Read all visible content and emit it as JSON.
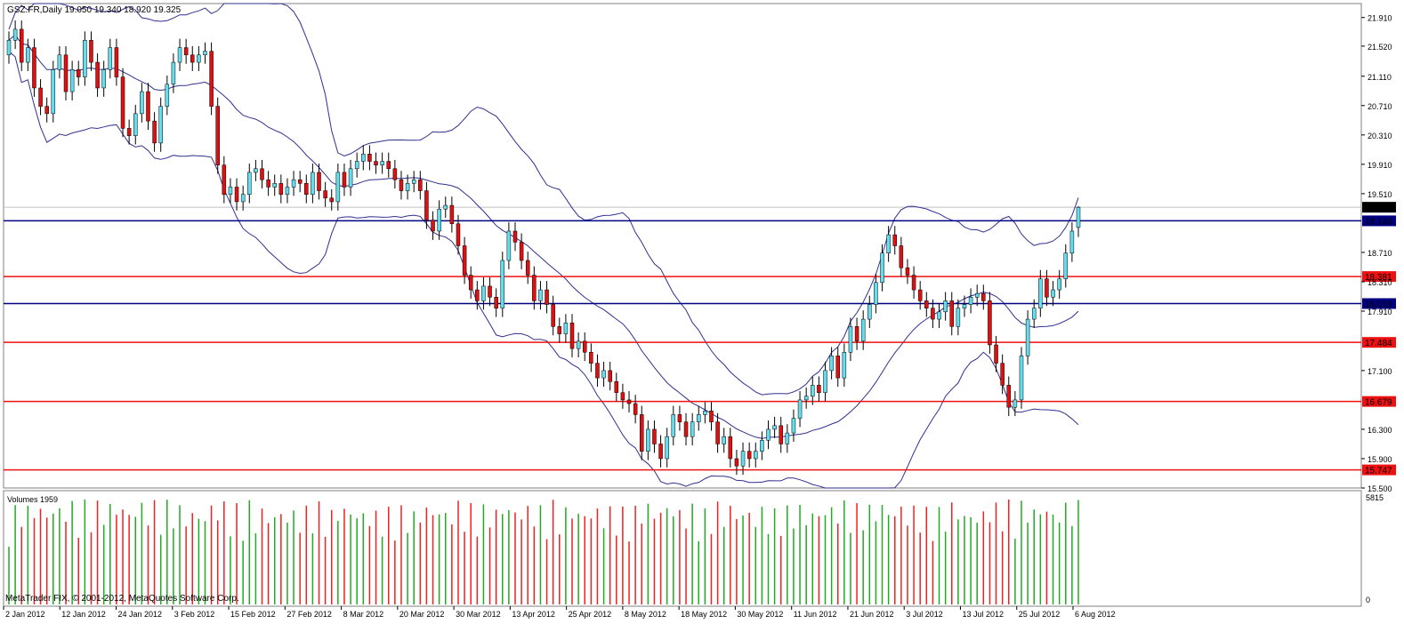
{
  "header": {
    "symbol_line": "GSZ.FR,Daily  19.050 19.340 18.920 19.325"
  },
  "volume_panel": {
    "label": "Volumes 1959",
    "max_label": "5815",
    "zero_label": "0"
  },
  "copyright": "MetaTrader FIX, © 2001-2012, MetaQuotes Software Corp.",
  "colors": {
    "bull": "#66ddee",
    "bear": "#dd1111",
    "band": "#303090",
    "support": "#ee1111",
    "resistance": "#000080",
    "vol_up": "#22aa22",
    "vol_down": "#ee2222"
  },
  "chart_data": {
    "type": "candlestick",
    "symbol": "GSZ.FR",
    "timeframe": "Daily",
    "last_bar": {
      "open": 19.05,
      "high": 19.34,
      "low": 18.92,
      "close": 19.325
    },
    "ylim": [
      15.5,
      22.1
    ],
    "y_ticks": [
      "21.910",
      "21.520",
      "21.110",
      "20.710",
      "20.310",
      "19.910",
      "19.510",
      "18.710",
      "18.310",
      "17.910",
      "17.100",
      "16.300",
      "15.900",
      "15.500"
    ],
    "current_price": "19.325",
    "x_labels": [
      "2 Jan 2012",
      "12 Jan 2012",
      "24 Jan 2012",
      "3 Feb 2012",
      "15 Feb 2012",
      "27 Feb 2012",
      "8 Mar 2012",
      "20 Mar 2012",
      "30 Mar 2012",
      "13 Apr 2012",
      "25 Apr 2012",
      "8 May 2012",
      "18 May 2012",
      "30 May 2012",
      "11 Jun 2012",
      "21 Jun 2012",
      "3 Jul 2012",
      "13 Jul 2012",
      "25 Jul 2012",
      "6 Aug 2012"
    ],
    "horizontal_levels": [
      {
        "value": 19.14,
        "label": "19.140",
        "kind": "resistance"
      },
      {
        "value": 18.381,
        "label": "18.381",
        "kind": "support"
      },
      {
        "value": 18.013,
        "label": "18.013",
        "kind": "resistance"
      },
      {
        "value": 17.484,
        "label": "17.484",
        "kind": "support"
      },
      {
        "value": 16.679,
        "label": "16.679",
        "kind": "support"
      },
      {
        "value": 15.747,
        "label": "15.747",
        "kind": "support"
      }
    ],
    "closes": [
      21.6,
      21.75,
      21.3,
      21.5,
      20.95,
      20.7,
      20.6,
      21.2,
      21.4,
      20.9,
      21.2,
      21.1,
      21.6,
      21.3,
      20.95,
      21.2,
      21.5,
      21.1,
      20.4,
      20.3,
      20.6,
      20.9,
      20.5,
      20.2,
      20.7,
      21.0,
      21.3,
      21.5,
      21.4,
      21.3,
      21.4,
      21.45,
      20.7,
      19.9,
      19.5,
      19.6,
      19.4,
      19.5,
      19.8,
      19.85,
      19.7,
      19.6,
      19.65,
      19.5,
      19.6,
      19.7,
      19.65,
      19.5,
      19.8,
      19.55,
      19.45,
      19.4,
      19.8,
      19.6,
      19.85,
      19.95,
      20.05,
      19.95,
      19.9,
      19.95,
      19.85,
      19.7,
      19.55,
      19.65,
      19.7,
      19.55,
      19.15,
      19.0,
      19.3,
      19.35,
      19.1,
      18.8,
      18.4,
      18.2,
      18.05,
      18.25,
      18.1,
      17.95,
      18.6,
      19.0,
      18.85,
      18.6,
      18.4,
      18.05,
      18.2,
      18.0,
      17.7,
      17.6,
      17.75,
      17.4,
      17.5,
      17.35,
      17.2,
      17.0,
      17.1,
      16.95,
      16.8,
      16.7,
      16.65,
      16.5,
      16.0,
      16.3,
      16.1,
      15.9,
      16.2,
      16.5,
      16.4,
      16.2,
      16.4,
      16.5,
      16.55,
      16.4,
      16.1,
      16.2,
      15.9,
      15.8,
      16.0,
      15.9,
      16.0,
      16.15,
      16.3,
      16.35,
      16.1,
      16.25,
      16.45,
      16.7,
      16.75,
      16.9,
      16.8,
      17.1,
      17.3,
      17.0,
      17.35,
      17.7,
      17.5,
      17.8,
      18.0,
      18.3,
      18.7,
      18.95,
      18.8,
      18.5,
      18.4,
      18.2,
      18.05,
      17.95,
      17.8,
      17.9,
      18.05,
      17.7,
      17.95,
      18.0,
      18.1,
      18.15,
      18.05,
      17.45,
      17.2,
      16.9,
      16.6,
      16.7,
      17.3,
      17.8,
      17.95,
      18.35,
      18.1,
      18.2,
      18.35,
      18.7,
      19.0,
      19.325
    ],
    "series": [
      {
        "name": "",
        "values": []
      }
    ]
  }
}
